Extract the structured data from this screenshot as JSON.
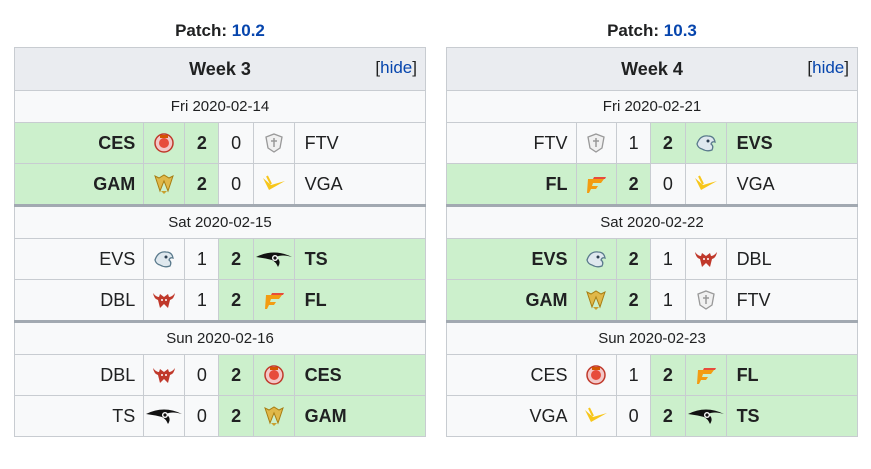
{
  "columns": [
    {
      "patch_label": "Patch:",
      "patch_value": "10.2",
      "week": "Week 3",
      "hide_open": "[",
      "hide_label": "hide",
      "hide_close": "]",
      "days": [
        {
          "date": "Fri 2020-02-14",
          "matches": [
            {
              "left": "CES",
              "left_logo": "ces-logo",
              "ls": "2",
              "rs": "0",
              "right": "FTV",
              "right_logo": "ftv-logo",
              "winner": "left"
            },
            {
              "left": "GAM",
              "left_logo": "gam-logo",
              "ls": "2",
              "rs": "0",
              "right": "VGA",
              "right_logo": "vga-logo",
              "winner": "left"
            }
          ]
        },
        {
          "date": "Sat 2020-02-15",
          "matches": [
            {
              "left": "EVS",
              "left_logo": "evs-logo",
              "ls": "1",
              "rs": "2",
              "right": "TS",
              "right_logo": "ts-logo",
              "winner": "right"
            },
            {
              "left": "DBL",
              "left_logo": "dbl-logo",
              "ls": "1",
              "rs": "2",
              "right": "FL",
              "right_logo": "fl-logo",
              "winner": "right"
            }
          ]
        },
        {
          "date": "Sun 2020-02-16",
          "matches": [
            {
              "left": "DBL",
              "left_logo": "dbl-logo",
              "ls": "0",
              "rs": "2",
              "right": "CES",
              "right_logo": "ces-logo",
              "winner": "right"
            },
            {
              "left": "TS",
              "left_logo": "ts-logo",
              "ls": "0",
              "rs": "2",
              "right": "GAM",
              "right_logo": "gam-logo",
              "winner": "right"
            }
          ]
        }
      ]
    },
    {
      "patch_label": "Patch:",
      "patch_value": "10.3",
      "week": "Week 4",
      "hide_open": "[",
      "hide_label": "hide",
      "hide_close": "]",
      "days": [
        {
          "date": "Fri 2020-02-21",
          "matches": [
            {
              "left": "FTV",
              "left_logo": "ftv-logo",
              "ls": "1",
              "rs": "2",
              "right": "EVS",
              "right_logo": "evs-logo",
              "winner": "right"
            },
            {
              "left": "FL",
              "left_logo": "fl-logo",
              "ls": "2",
              "rs": "0",
              "right": "VGA",
              "right_logo": "vga-logo",
              "winner": "left"
            }
          ]
        },
        {
          "date": "Sat 2020-02-22",
          "matches": [
            {
              "left": "EVS",
              "left_logo": "evs-logo",
              "ls": "2",
              "rs": "1",
              "right": "DBL",
              "right_logo": "dbl-logo",
              "winner": "left"
            },
            {
              "left": "GAM",
              "left_logo": "gam-logo",
              "ls": "2",
              "rs": "1",
              "right": "FTV",
              "right_logo": "ftv-logo",
              "winner": "left"
            }
          ]
        },
        {
          "date": "Sun 2020-02-23",
          "matches": [
            {
              "left": "CES",
              "left_logo": "ces-logo",
              "ls": "1",
              "rs": "2",
              "right": "FL",
              "right_logo": "fl-logo",
              "winner": "right"
            },
            {
              "left": "VGA",
              "left_logo": "vga-logo",
              "ls": "0",
              "rs": "2",
              "right": "TS",
              "right_logo": "ts-logo",
              "winner": "right"
            }
          ]
        }
      ]
    }
  ],
  "colors": {
    "win_bg": "#ccf0cc",
    "link": "#0645ad",
    "header_bg": "#eaecf0"
  }
}
